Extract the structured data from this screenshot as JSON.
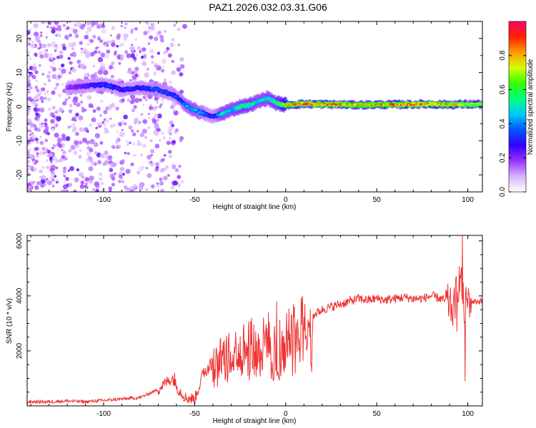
{
  "figure_title": "PAZ1.2026.032.03.31.G06",
  "chart_data": [
    {
      "type": "heatmap",
      "title": "PAZ1.2026.032.03.31.G06",
      "xlabel": "Height of straight line (km)",
      "ylabel": "Frequency (Hz)",
      "xlim": [
        -142,
        108
      ],
      "ylim": [
        -25,
        25
      ],
      "x_ticks": [
        -100,
        -50,
        0,
        50,
        100
      ],
      "x_tick_labels": [
        "-100",
        "-50",
        "0",
        "50",
        "100"
      ],
      "y_ticks": [
        -20,
        -10,
        0,
        10,
        20
      ],
      "y_tick_labels": [
        "-20",
        "-10",
        "0",
        "10",
        "20"
      ],
      "colorbar": {
        "label": "Normalized spectral amplitude",
        "range": [
          0,
          1
        ],
        "ticks": [
          0.0,
          0.2,
          0.4,
          0.6,
          0.8
        ],
        "tick_labels": [
          "0.0",
          "0.2",
          "0.4",
          "0.6",
          "0.8"
        ],
        "colors": [
          "#ffffff",
          "#d9b3ff",
          "#9933ff",
          "#3300ff",
          "#0055ff",
          "#00c8ff",
          "#00ff80",
          "#33ff00",
          "#d4ff00",
          "#ff9900",
          "#ff2200",
          "#ff0066"
        ]
      },
      "ridge": {
        "x": [
          -120,
          -110,
          -100,
          -90,
          -80,
          -70,
          -60,
          -55,
          -50,
          -45,
          -40,
          -35,
          -30,
          -25,
          -20,
          -15,
          -10,
          -5,
          0,
          10,
          20,
          30,
          40,
          50,
          60,
          70,
          80,
          90,
          100,
          108
        ],
        "freq": [
          5.5,
          6,
          6.5,
          5,
          5.5,
          5,
          3,
          0.5,
          -1,
          -2,
          -3,
          -2,
          -1,
          0,
          0.5,
          1.5,
          2.5,
          1,
          0.5,
          0.8,
          0.7,
          0.6,
          0.5,
          0.6,
          0.6,
          0.7,
          0.7,
          0.6,
          0.7,
          0.7
        ],
        "amplitude": [
          0.2,
          0.25,
          0.35,
          0.3,
          0.35,
          0.4,
          0.35,
          0.45,
          0.5,
          0.4,
          0.3,
          0.55,
          0.5,
          0.6,
          0.6,
          0.5,
          0.55,
          0.6,
          0.8,
          0.9,
          0.85,
          0.9,
          0.8,
          0.85,
          0.85,
          0.9,
          0.9,
          0.8,
          0.75,
          0.75
        ]
      },
      "noise_region_x": [
        -142,
        -55
      ]
    },
    {
      "type": "line",
      "xlabel": "Height of straight line (km)",
      "ylabel": "SNR (10 * v/v)",
      "xlim": [
        -142,
        108
      ],
      "ylim": [
        0,
        6200
      ],
      "x_ticks": [
        -100,
        -50,
        0,
        50,
        100
      ],
      "x_tick_labels": [
        "-100",
        "-50",
        "0",
        "50",
        "100"
      ],
      "y_ticks": [
        2000,
        4000,
        6000
      ],
      "y_tick_labels": [
        "2000",
        "4000",
        "6000"
      ],
      "series": [
        {
          "name": "SNR",
          "color": "#ee3333",
          "x": [
            -142,
            -130,
            -120,
            -110,
            -100,
            -90,
            -80,
            -75,
            -70,
            -65,
            -62,
            -60,
            -55,
            -50,
            -47,
            -45,
            -40,
            -35,
            -30,
            -25,
            -20,
            -15,
            -10,
            -5,
            0,
            5,
            10,
            15,
            20,
            25,
            30,
            35,
            40,
            45,
            50,
            55,
            60,
            65,
            70,
            75,
            80,
            85,
            88,
            90,
            92,
            94,
            96,
            98,
            100,
            102,
            105,
            108
          ],
          "y": [
            150,
            150,
            180,
            150,
            200,
            250,
            300,
            450,
            600,
            900,
            1000,
            700,
            300,
            250,
            800,
            1300,
            1600,
            1900,
            2000,
            2200,
            2500,
            2200,
            2600,
            2200,
            2600,
            2800,
            3100,
            3300,
            3500,
            3600,
            3700,
            3800,
            3900,
            3850,
            3900,
            3850,
            3900,
            3950,
            3900,
            3900,
            4000,
            3900,
            3800,
            3700,
            3400,
            4300,
            4700,
            3500,
            3900,
            3800,
            3800,
            3800
          ],
          "extremes": [
            {
              "x": -61,
              "y": 1200
            },
            {
              "x": -5,
              "y": 3800
            },
            {
              "x": 94,
              "y": 2700
            },
            {
              "x": 97,
              "y": 6200
            },
            {
              "x": 98.5,
              "y": 900
            }
          ]
        }
      ]
    }
  ]
}
